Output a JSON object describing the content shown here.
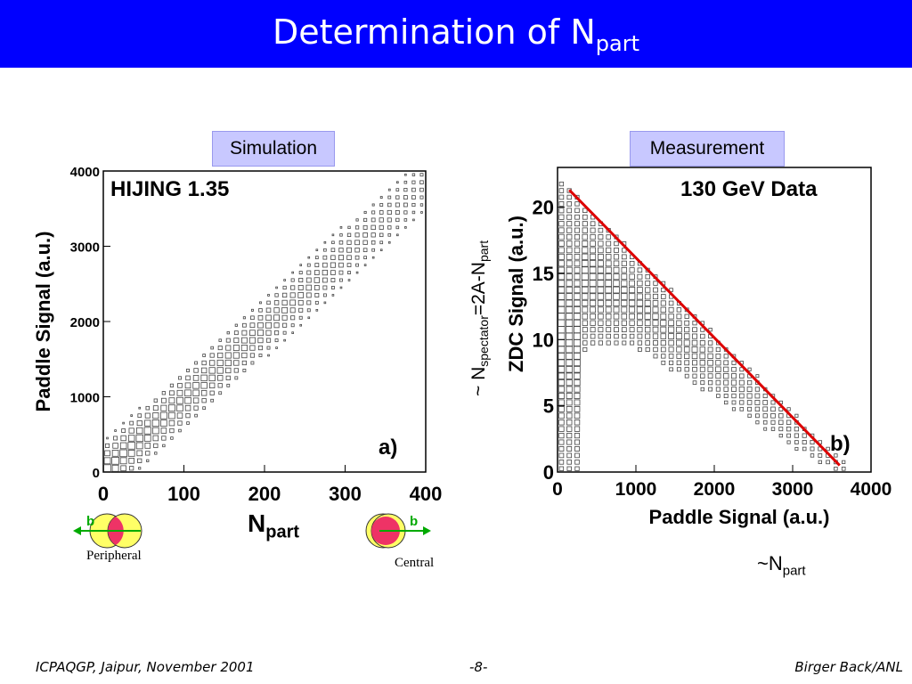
{
  "header": {
    "title_main": "Determination of N",
    "title_sub": "part",
    "bg_color": "#0000ff"
  },
  "labels": {
    "simulation": "Simulation",
    "measurement": "Measurement",
    "spectator_prefix": "~ N",
    "spectator_sub": "spectator",
    "spectator_mid": "=2A-N",
    "spectator_sub2": "part",
    "npart_note_prefix": "~N",
    "npart_note_sub": "part",
    "npart_axis_main": "N",
    "npart_axis_sub": "part",
    "peripheral": "Peripheral",
    "central": "Central",
    "b_left": "b",
    "b_right": "b"
  },
  "footer": {
    "left": "ICPAQGP, Jaipur, November 2001",
    "center": "-8-",
    "right": "Birger Back/ANL"
  },
  "chart_data": [
    {
      "type": "heatmap",
      "title": "HIJING 1.35",
      "panel_label": "a)",
      "xlabel": "",
      "ylabel": "Paddle Signal (a.u.)",
      "xlim": [
        0,
        400
      ],
      "ylim": [
        0,
        4000
      ],
      "xticks": [
        0,
        100,
        200,
        300,
        400
      ],
      "yticks": [
        0,
        1000,
        2000,
        3000,
        4000
      ],
      "band": {
        "y_per_x": 9.6,
        "halfwidth": 420
      }
    },
    {
      "type": "heatmap",
      "title": "130 GeV Data",
      "panel_label": "b)",
      "xlabel": "Paddle Signal (a.u.)",
      "ylabel": "ZDC Signal (a.u.)",
      "xlim": [
        0,
        4000
      ],
      "ylim": [
        0,
        23
      ],
      "xticks": [
        0,
        1000,
        2000,
        3000,
        4000
      ],
      "yticks": [
        0,
        5,
        10,
        15,
        20
      ],
      "fit_line": {
        "x": [
          150,
          3600
        ],
        "y": [
          21.3,
          0.5
        ],
        "color": "#dd0000"
      }
    }
  ]
}
